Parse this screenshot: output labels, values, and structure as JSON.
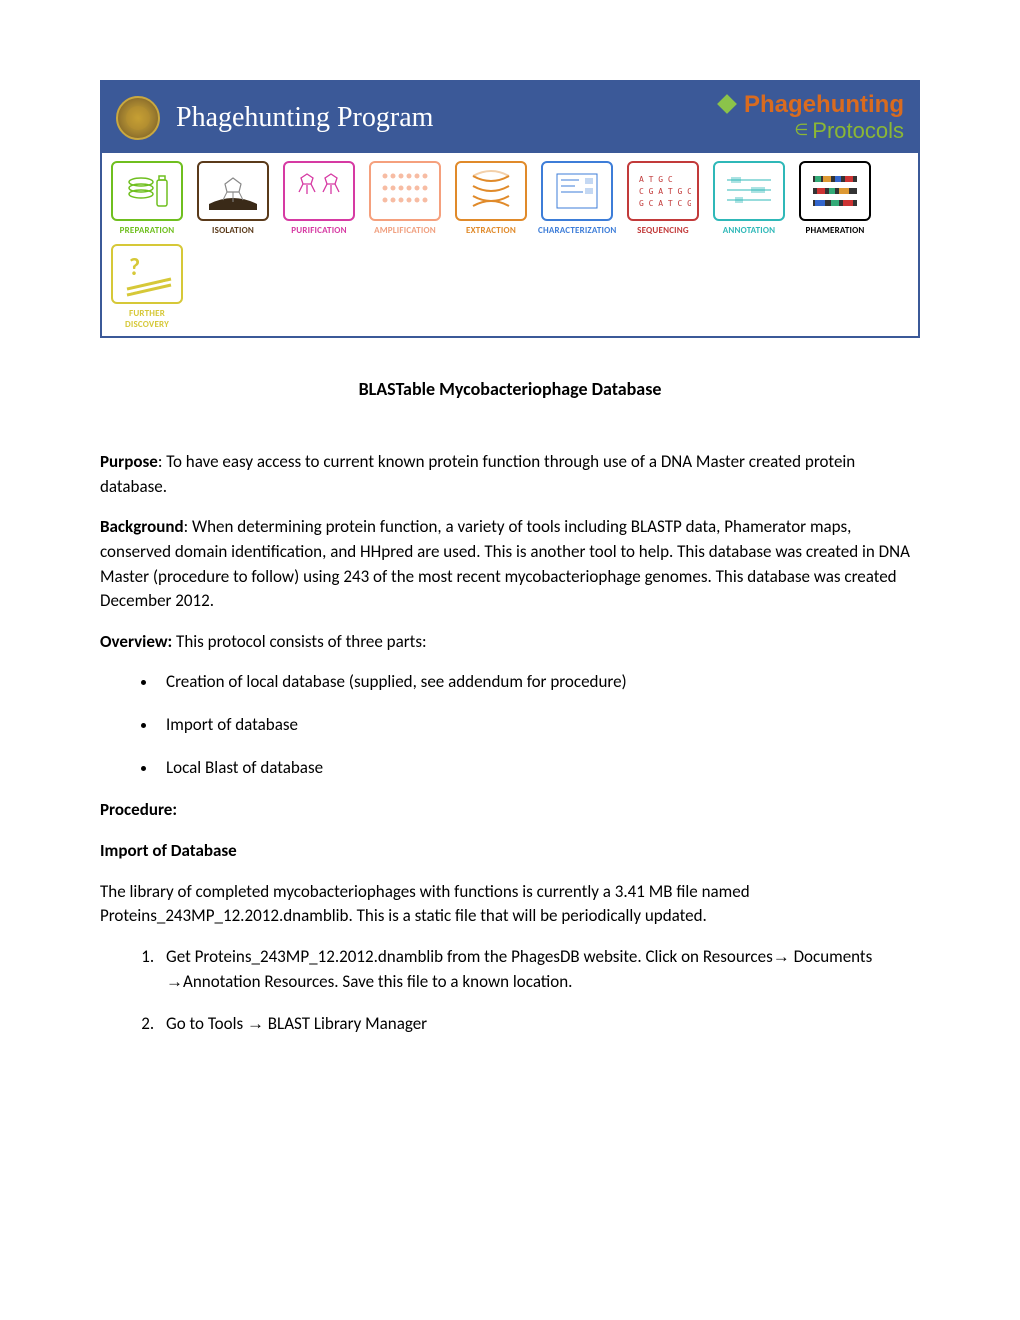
{
  "banner": {
    "program_title": "Phagehunting Program",
    "logo_top": "Phagehunting",
    "logo_bottom": "Protocols",
    "bg_color": "#3b5998",
    "title_color": "#ffffff",
    "logo_top_color": "#d96b1f",
    "logo_bottom_color": "#8bb735"
  },
  "stages": [
    {
      "label": "PREPARATION",
      "color": "#6fbf1f",
      "label_color": "#6fbf1f"
    },
    {
      "label": "ISOLATION",
      "color": "#5a3a1a",
      "label_color": "#5a3a1a"
    },
    {
      "label": "PURIFICATION",
      "color": "#d63aa3",
      "label_color": "#d63aa3"
    },
    {
      "label": "AMPLIFICATION",
      "color": "#f5a07d",
      "label_color": "#f0a080"
    },
    {
      "label": "EXTRACTION",
      "color": "#e08a2a",
      "label_color": "#e08a2a"
    },
    {
      "label": "CHARACTERIZATION",
      "color": "#3d7dd8",
      "label_color": "#3d7dd8"
    },
    {
      "label": "SEQUENCING",
      "color": "#c23a3a",
      "label_color": "#c23a3a"
    },
    {
      "label": "ANNOTATION",
      "color": "#2fb8b8",
      "label_color": "#2fb8b8"
    },
    {
      "label": "PHAMERATION",
      "color": "#000000",
      "label_color": "#000000"
    },
    {
      "label": "FURTHER DISCOVERY",
      "color": "#d6c838",
      "label_color": "#d6c838"
    }
  ],
  "doc": {
    "title": "BLASTable Mycobacteriophage Database",
    "purpose_label": "Purpose",
    "purpose_text": ": To have easy access to current known protein function through use of a DNA Master created protein database.",
    "background_label": "Background",
    "background_text": ": When determining protein function, a variety of tools including BLASTP data, Phamerator maps, conserved domain identification, and HHpred are used. This is another tool to help. This database was created in DNA Master (procedure to follow) using 243 of the most recent mycobacteriophage genomes. This database was created December 2012.",
    "overview_label": "Overview:",
    "overview_text": "  This protocol consists of three parts:",
    "overview_items": [
      "Creation of local database (supplied, see addendum for procedure)",
      "Import of database",
      "Local Blast of database"
    ],
    "procedure_label": "Procedure:",
    "import_heading": "Import of Database",
    "import_intro": "The library of completed mycobacteriophages with functions is currently a 3.41 MB file named Proteins_243MP_12.2012.dnamblib. This is a static file that will be periodically updated.",
    "import_steps": [
      "Get Proteins_243MP_12.2012.dnamblib from the PhagesDB website. Click on Resources→ Documents  →Annotation Resources. Save this file to a known location.",
      "Go to Tools → BLAST Library Manager"
    ]
  }
}
